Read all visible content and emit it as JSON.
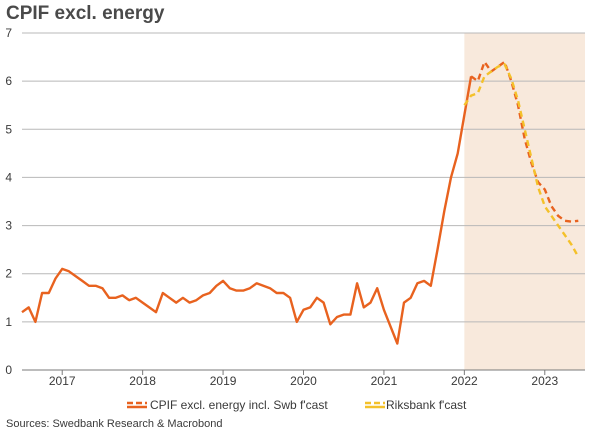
{
  "chart_data": {
    "type": "line",
    "title": "CPIF excl. energy",
    "source": "Sources: Swedbank Research & Macrobond",
    "colors": {
      "actual": "#e8621f",
      "swb_forecast": "#e8621f",
      "riksbank_forecast": "#f4c12a",
      "forecast_shade": "#f8e9dc",
      "grid": "#b8b8b8"
    },
    "ylim": [
      0,
      7
    ],
    "y_ticks": [
      "0",
      "1",
      "2",
      "3",
      "4",
      "5",
      "6",
      "7"
    ],
    "xlim": [
      "2016-07",
      "2023-07"
    ],
    "x_ticks": [
      {
        "label": "2017",
        "date": "2017-01"
      },
      {
        "label": "2018",
        "date": "2018-01"
      },
      {
        "label": "2019",
        "date": "2019-01"
      },
      {
        "label": "2020",
        "date": "2020-01"
      },
      {
        "label": "2021",
        "date": "2021-01"
      },
      {
        "label": "2022",
        "date": "2022-01"
      },
      {
        "label": "2023",
        "date": "2023-01"
      }
    ],
    "forecast_period": [
      "2022-01",
      "2023-07"
    ],
    "grid": true,
    "legend_position": "bottom-right",
    "series": [
      {
        "name": "CPIF excl. energy incl. Swb  f'cast",
        "style": "solid",
        "points": [
          [
            "2016-07",
            1.2
          ],
          [
            "2016-08",
            1.3
          ],
          [
            "2016-09",
            1.0
          ],
          [
            "2016-10",
            1.6
          ],
          [
            "2016-11",
            1.6
          ],
          [
            "2016-12",
            1.9
          ],
          [
            "2017-01",
            2.1
          ],
          [
            "2017-02",
            2.05
          ],
          [
            "2017-03",
            1.95
          ],
          [
            "2017-04",
            1.85
          ],
          [
            "2017-05",
            1.75
          ],
          [
            "2017-06",
            1.75
          ],
          [
            "2017-07",
            1.7
          ],
          [
            "2017-08",
            1.5
          ],
          [
            "2017-09",
            1.5
          ],
          [
            "2017-10",
            1.55
          ],
          [
            "2017-11",
            1.45
          ],
          [
            "2017-12",
            1.5
          ],
          [
            "2018-01",
            1.4
          ],
          [
            "2018-02",
            1.3
          ],
          [
            "2018-03",
            1.2
          ],
          [
            "2018-04",
            1.6
          ],
          [
            "2018-05",
            1.5
          ],
          [
            "2018-06",
            1.4
          ],
          [
            "2018-07",
            1.5
          ],
          [
            "2018-08",
            1.4
          ],
          [
            "2018-09",
            1.45
          ],
          [
            "2018-10",
            1.55
          ],
          [
            "2018-11",
            1.6
          ],
          [
            "2018-12",
            1.75
          ],
          [
            "2019-01",
            1.85
          ],
          [
            "2019-02",
            1.7
          ],
          [
            "2019-03",
            1.65
          ],
          [
            "2019-04",
            1.65
          ],
          [
            "2019-05",
            1.7
          ],
          [
            "2019-06",
            1.8
          ],
          [
            "2019-07",
            1.75
          ],
          [
            "2019-08",
            1.7
          ],
          [
            "2019-09",
            1.6
          ],
          [
            "2019-10",
            1.6
          ],
          [
            "2019-11",
            1.5
          ],
          [
            "2019-12",
            1.0
          ],
          [
            "2020-01",
            1.25
          ],
          [
            "2020-02",
            1.3
          ],
          [
            "2020-03",
            1.5
          ],
          [
            "2020-04",
            1.4
          ],
          [
            "2020-05",
            0.95
          ],
          [
            "2020-06",
            1.1
          ],
          [
            "2020-07",
            1.15
          ],
          [
            "2020-08",
            1.15
          ],
          [
            "2020-09",
            1.8
          ],
          [
            "2020-10",
            1.3
          ],
          [
            "2020-11",
            1.4
          ],
          [
            "2020-12",
            1.7
          ],
          [
            "2021-01",
            1.25
          ],
          [
            "2021-02",
            0.9
          ],
          [
            "2021-03",
            0.55
          ],
          [
            "2021-04",
            1.4
          ],
          [
            "2021-05",
            1.5
          ],
          [
            "2021-06",
            1.8
          ],
          [
            "2021-07",
            1.85
          ],
          [
            "2021-08",
            1.75
          ],
          [
            "2021-09",
            2.5
          ],
          [
            "2021-10",
            3.3
          ],
          [
            "2021-11",
            4.0
          ],
          [
            "2021-12",
            4.5
          ],
          [
            "2022-01",
            5.3
          ],
          [
            "2022-02",
            6.1
          ]
        ]
      },
      {
        "name": "CPIF excl. energy incl. Swb  f'cast (forecast)",
        "style": "dashed",
        "points": [
          [
            "2022-02",
            6.1
          ],
          [
            "2022-03",
            6.0
          ],
          [
            "2022-04",
            6.4
          ],
          [
            "2022-05",
            6.2
          ],
          [
            "2022-06",
            6.3
          ],
          [
            "2022-07",
            6.4
          ],
          [
            "2022-08",
            6.0
          ],
          [
            "2022-09",
            5.5
          ],
          [
            "2022-10",
            4.8
          ],
          [
            "2022-11",
            4.3
          ],
          [
            "2022-12",
            3.9
          ],
          [
            "2023-01",
            3.75
          ],
          [
            "2023-02",
            3.4
          ],
          [
            "2023-03",
            3.2
          ],
          [
            "2023-04",
            3.1
          ],
          [
            "2023-05",
            3.08
          ],
          [
            "2023-06",
            3.1
          ]
        ]
      },
      {
        "name": "Riksbank f'cast",
        "style": "dashed",
        "points": [
          [
            "2022-01",
            5.5
          ],
          [
            "2022-02",
            5.7
          ],
          [
            "2022-03",
            5.75
          ],
          [
            "2022-04",
            6.1
          ],
          [
            "2022-05",
            6.2
          ],
          [
            "2022-06",
            6.3
          ],
          [
            "2022-07",
            6.35
          ],
          [
            "2022-08",
            6.05
          ],
          [
            "2022-09",
            5.6
          ],
          [
            "2022-10",
            5.0
          ],
          [
            "2022-11",
            4.4
          ],
          [
            "2022-12",
            3.8
          ],
          [
            "2023-01",
            3.4
          ],
          [
            "2023-02",
            3.2
          ],
          [
            "2023-03",
            3.0
          ],
          [
            "2023-04",
            2.8
          ],
          [
            "2023-05",
            2.6
          ],
          [
            "2023-06",
            2.35
          ]
        ]
      }
    ],
    "legend": [
      {
        "label": "CPIF excl. energy incl. Swb  f'cast",
        "color": "#e8621f"
      },
      {
        "label": "Riksbank f'cast",
        "color": "#f4c12a"
      }
    ]
  }
}
